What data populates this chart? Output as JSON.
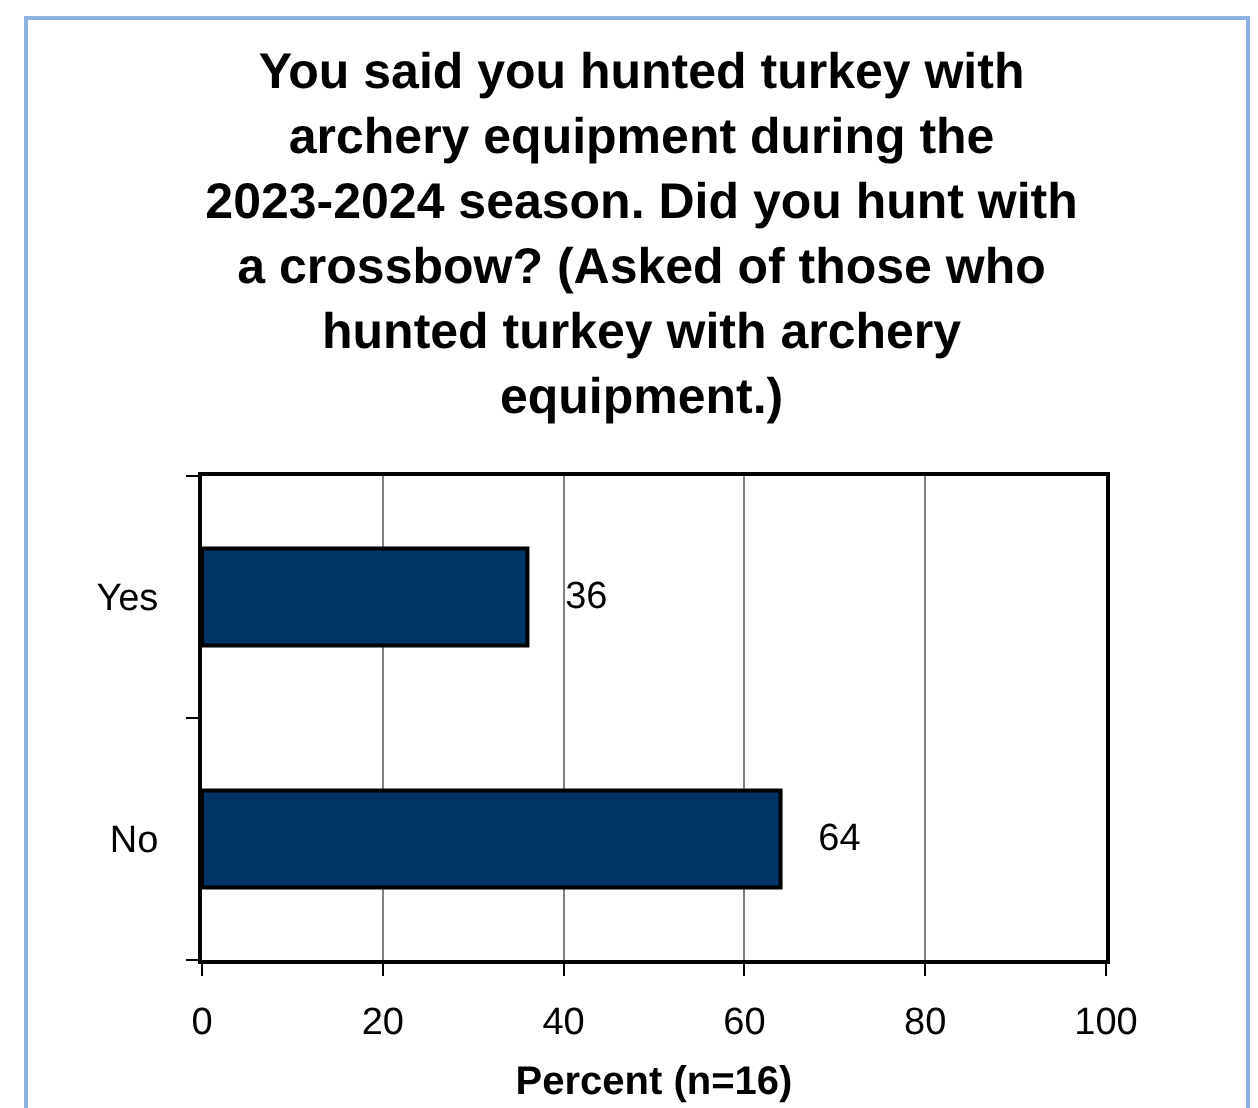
{
  "chart_data": {
    "type": "bar",
    "orientation": "horizontal",
    "title": "You said you hunted turkey with archery equipment during the 2023-2024 season. Did you hunt with a crossbow? (Asked of those who hunted turkey with archery equipment.)",
    "xlabel": "Percent (n=16)",
    "categories": [
      "Yes",
      "No"
    ],
    "values": [
      36,
      64
    ],
    "color": "#003366",
    "xlim": [
      0,
      100
    ],
    "xticks": [
      0,
      20,
      40,
      60,
      80,
      100
    ],
    "grid": "x",
    "data_labels": true
  }
}
